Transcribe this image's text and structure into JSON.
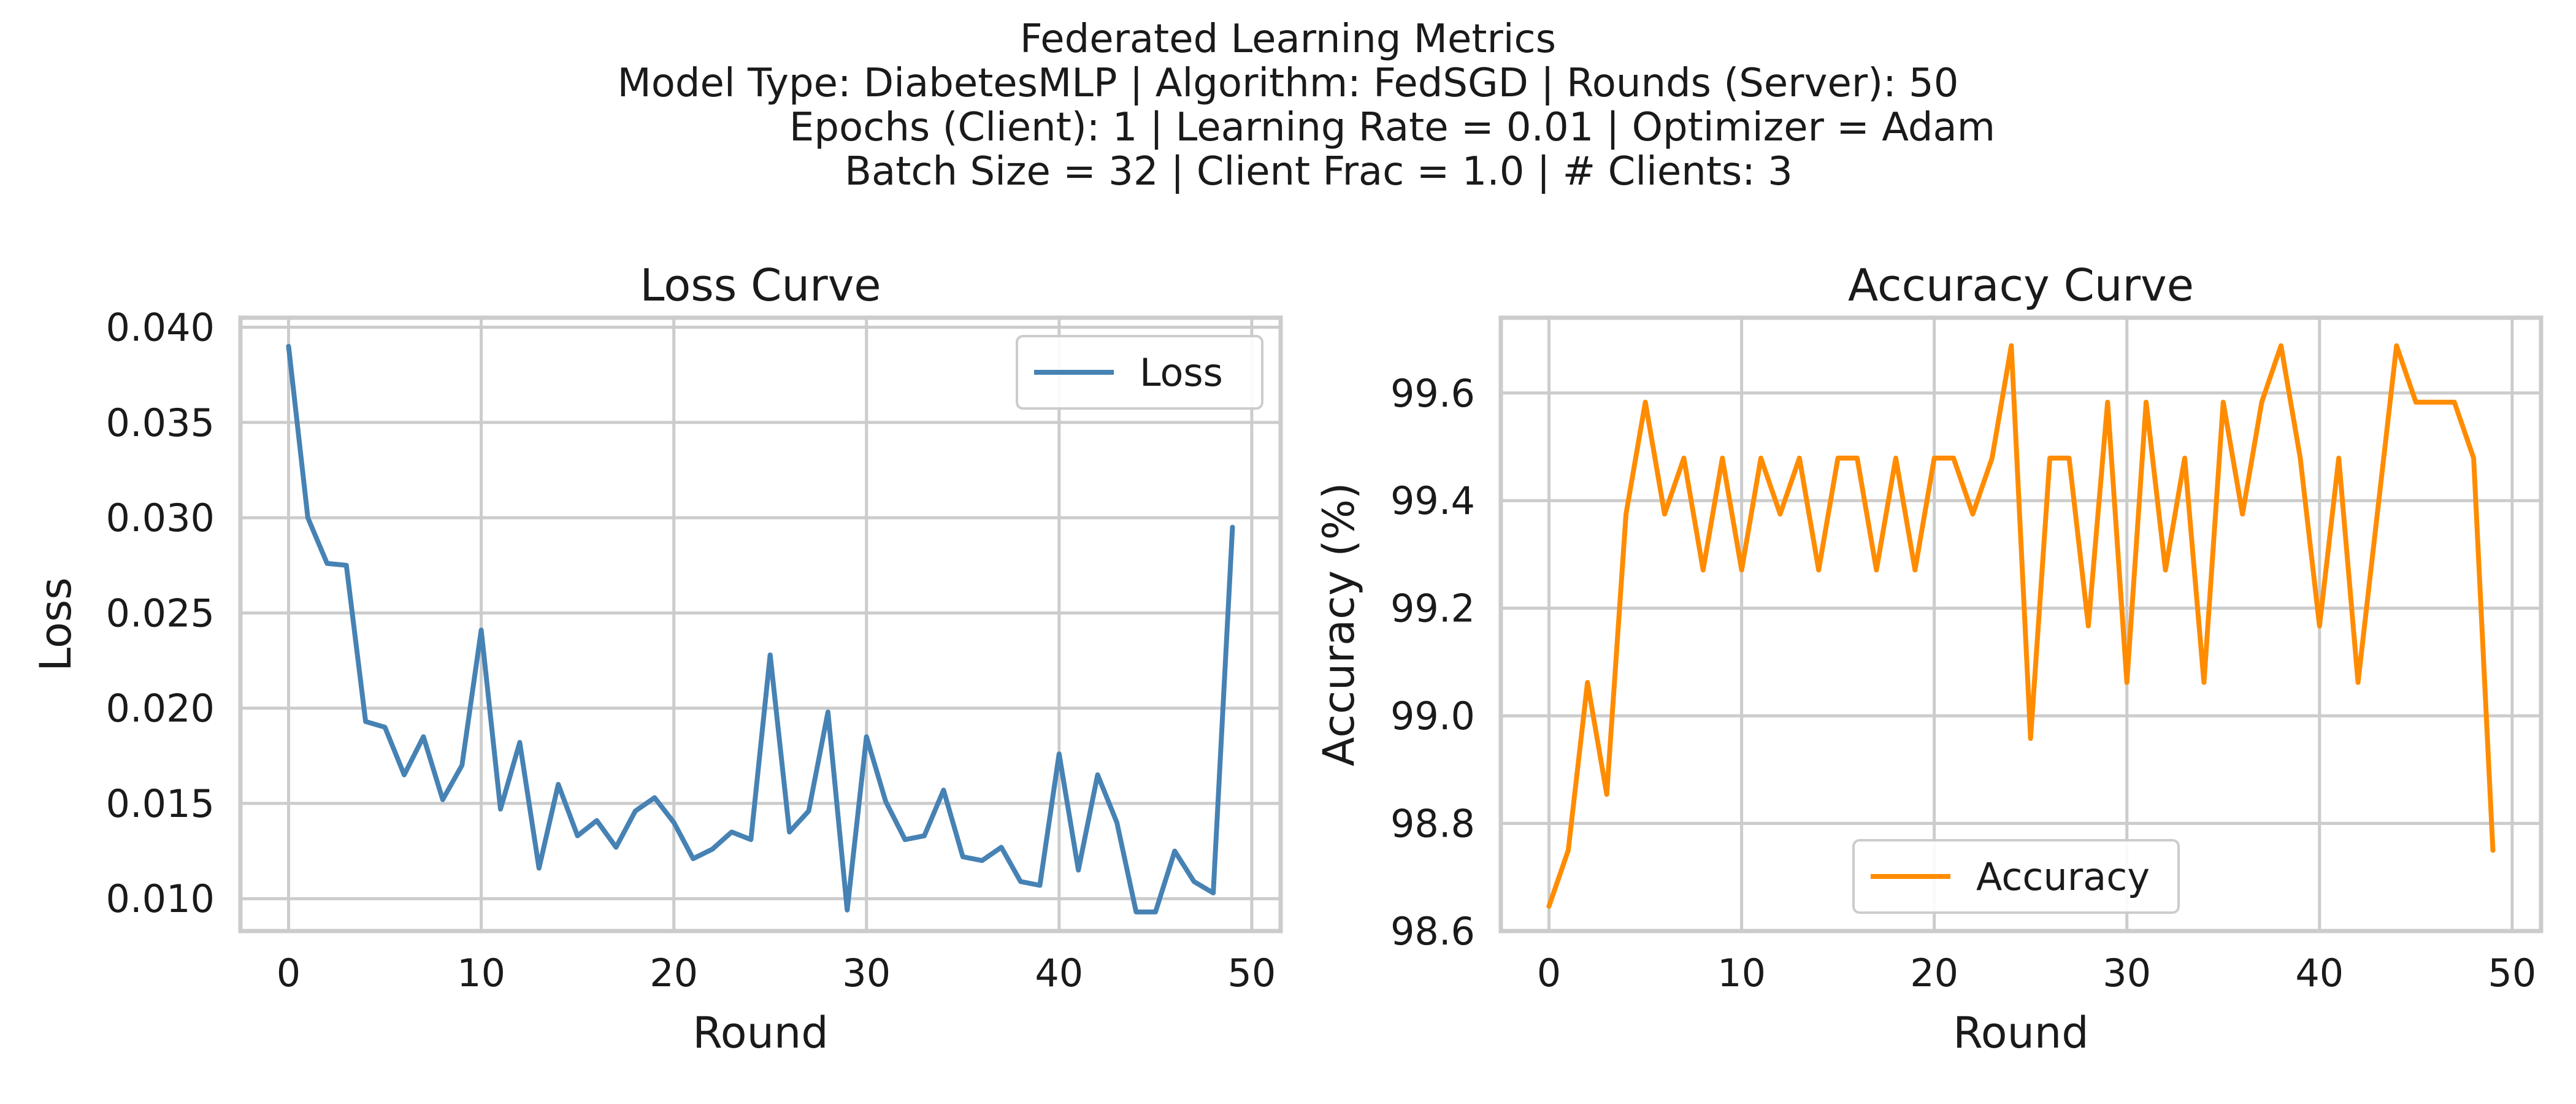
{
  "suptitle": {
    "line1": "Federated Learning Metrics",
    "line2": "Model Type: DiabetesMLP | Algorithm: FedSGD | Rounds (Server): 50",
    "line3": "Epochs (Client): 1 | Learning Rate = 0.01 | Optimizer = Adam",
    "line4": "Batch Size = 32 | Client Frac = 1.0 | # Clients: 3"
  },
  "colors": {
    "loss": "#4682b4",
    "accuracy": "#ff8c00",
    "grid": "#cccccc",
    "spine": "#cccccc"
  },
  "chart_data": [
    {
      "type": "line",
      "title": "Loss Curve",
      "xlabel": "Round",
      "ylabel": "Loss",
      "xlim": [
        -2.5,
        51.5
      ],
      "ylim": [
        0.0083,
        0.0405
      ],
      "xticks": [
        0,
        10,
        20,
        30,
        40,
        50
      ],
      "xtick_labels": [
        "0",
        "10",
        "20",
        "30",
        "40",
        "50"
      ],
      "yticks": [
        0.01,
        0.015,
        0.02,
        0.025,
        0.03,
        0.035,
        0.04
      ],
      "ytick_labels": [
        "0.010",
        "0.015",
        "0.020",
        "0.025",
        "0.030",
        "0.035",
        "0.040"
      ],
      "grid": true,
      "legend_position": "upper right",
      "series": [
        {
          "name": "Loss",
          "color": "#4682b4",
          "x": [
            0,
            1,
            2,
            3,
            4,
            5,
            6,
            7,
            8,
            9,
            10,
            11,
            12,
            13,
            14,
            15,
            16,
            17,
            18,
            19,
            20,
            21,
            22,
            23,
            24,
            25,
            26,
            27,
            28,
            29,
            30,
            31,
            32,
            33,
            34,
            35,
            36,
            37,
            38,
            39,
            40,
            41,
            42,
            43,
            44,
            45,
            46,
            47,
            48,
            49
          ],
          "values": [
            0.039,
            0.03,
            0.0276,
            0.0275,
            0.0193,
            0.019,
            0.0165,
            0.0185,
            0.0152,
            0.017,
            0.0241,
            0.0147,
            0.0182,
            0.0116,
            0.016,
            0.0133,
            0.0141,
            0.0127,
            0.0146,
            0.0153,
            0.014,
            0.0121,
            0.0126,
            0.0135,
            0.0131,
            0.0228,
            0.0135,
            0.0146,
            0.0198,
            0.0094,
            0.0185,
            0.0151,
            0.0131,
            0.0133,
            0.0157,
            0.0122,
            0.012,
            0.0127,
            0.0109,
            0.0107,
            0.0176,
            0.0115,
            0.0165,
            0.014,
            0.0093,
            0.0093,
            0.0125,
            0.0109,
            0.0103,
            0.0295
          ]
        }
      ]
    },
    {
      "type": "line",
      "title": "Accuracy Curve",
      "xlabel": "Round",
      "ylabel": "Accuracy (%)",
      "xlim": [
        -2.5,
        51.5
      ],
      "ylim": [
        98.6,
        99.74
      ],
      "xticks": [
        0,
        10,
        20,
        30,
        40,
        50
      ],
      "xtick_labels": [
        "0",
        "10",
        "20",
        "30",
        "40",
        "50"
      ],
      "yticks": [
        98.6,
        98.8,
        99.0,
        99.2,
        99.4,
        99.6
      ],
      "ytick_labels": [
        "98.6",
        "98.8",
        "99.0",
        "99.2",
        "99.4",
        "99.6"
      ],
      "grid": true,
      "legend_position": "lower center",
      "series": [
        {
          "name": "Accuracy",
          "color": "#ff8c00",
          "x": [
            0,
            1,
            2,
            3,
            4,
            5,
            6,
            7,
            8,
            9,
            10,
            11,
            12,
            13,
            14,
            15,
            16,
            17,
            18,
            19,
            20,
            21,
            22,
            23,
            24,
            25,
            26,
            27,
            28,
            29,
            30,
            31,
            32,
            33,
            34,
            35,
            36,
            37,
            38,
            39,
            40,
            41,
            42,
            43,
            44,
            45,
            46,
            47,
            48,
            49
          ],
          "values": [
            98.646,
            98.75,
            99.062,
            98.854,
            99.375,
            99.583,
            99.375,
            99.479,
            99.271,
            99.479,
            99.271,
            99.479,
            99.375,
            99.479,
            99.271,
            99.479,
            99.479,
            99.271,
            99.479,
            99.271,
            99.479,
            99.479,
            99.375,
            99.479,
            99.688,
            98.958,
            99.479,
            99.479,
            99.167,
            99.583,
            99.062,
            99.583,
            99.271,
            99.479,
            99.062,
            99.583,
            99.375,
            99.583,
            99.688,
            99.479,
            99.167,
            99.479,
            99.062,
            99.375,
            99.688,
            99.583,
            99.583,
            99.583,
            99.479,
            98.75
          ]
        }
      ]
    }
  ]
}
